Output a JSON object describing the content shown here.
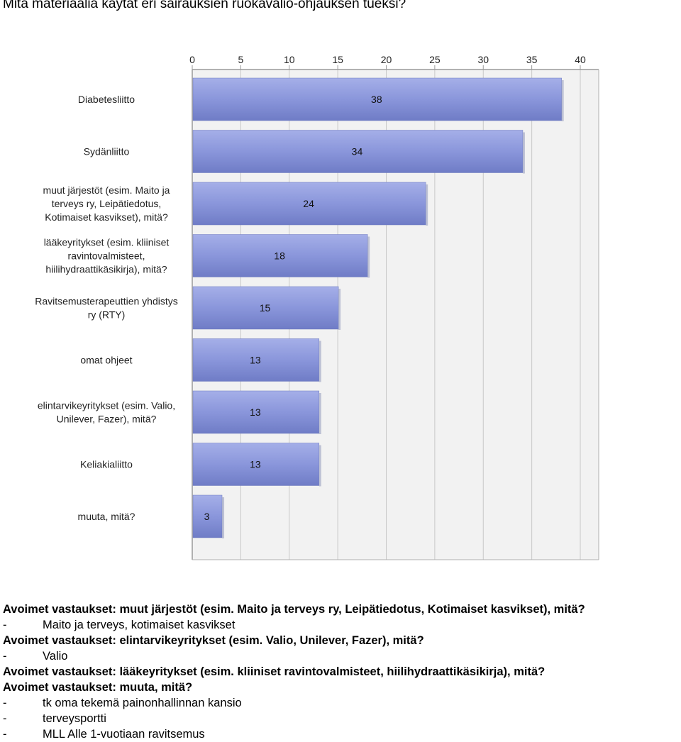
{
  "question": "Mitä materiaalia käytät eri sairauksien ruokavalio-ohjauksen tueksi?",
  "chart_data": {
    "type": "bar",
    "orientation": "horizontal",
    "categories": [
      [
        "Diabetesliitto"
      ],
      [
        "Sydänliitto"
      ],
      [
        "muut järjestöt (esim. Maito ja",
        "terveys ry, Leipätiedotus,",
        "Kotimaiset kasvikset), mitä?"
      ],
      [
        "lääkeyritykset (esim. kliiniset",
        "ravintovalmisteet,",
        "hiilihydraattikäsikirja), mitä?"
      ],
      [
        "Ravitsemusterapeuttien yhdistys",
        "ry (RTY)"
      ],
      [
        "omat ohjeet"
      ],
      [
        "elintarvikeyritykset (esim. Valio,",
        "Unilever, Fazer), mitä?"
      ],
      [
        "Keliakialiitto"
      ],
      [
        "muuta, mitä?"
      ]
    ],
    "values": [
      38,
      34,
      24,
      18,
      15,
      13,
      13,
      13,
      3
    ],
    "xlim": [
      0,
      40
    ],
    "xticks": [
      "0",
      "5",
      "10",
      "15",
      "20",
      "25",
      "30",
      "35",
      "40"
    ],
    "axis_position": "top",
    "grid": true,
    "bar_color": "#8b97dc",
    "plot_background": "#f2f2f2"
  },
  "open_answers": [
    {
      "heading": "Avoimet vastaukset: muut järjestöt (esim. Maito ja terveys ry, Leipätiedotus, Kotimaiset kasvikset), mitä?",
      "items": [
        {
          "dash": "-",
          "text": "Maito ja terveys, kotimaiset kasvikset"
        }
      ]
    },
    {
      "heading": "Avoimet vastaukset: elintarvikeyritykset (esim. Valio, Unilever, Fazer), mitä?",
      "items": [
        {
          "dash": "-",
          "text": "Valio"
        }
      ]
    },
    {
      "heading": "Avoimet vastaukset: lääkeyritykset (esim. kliiniset ravintovalmisteet, hiilihydraattikäsikirja), mitä?",
      "items": []
    },
    {
      "heading": "Avoimet vastaukset: muuta, mitä?",
      "items": [
        {
          "dash": "-",
          "text": "tk oma tekemä painonhallinnan kansio"
        },
        {
          "dash": "-",
          "text": "terveysportti"
        },
        {
          "dash": "-",
          "text": "MLL Alle 1-vuotiaan ravitsemus"
        }
      ]
    }
  ]
}
